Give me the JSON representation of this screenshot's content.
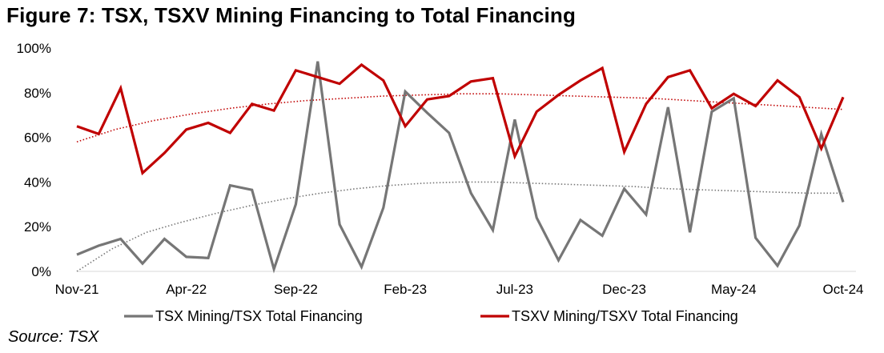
{
  "title": "Figure 7: TSX, TSXV Mining Financing to Total Financing",
  "source": "Source: TSX",
  "chart_data": {
    "type": "line",
    "title": "Figure 7: TSX, TSXV Mining Financing to Total Financing",
    "xlabel": "",
    "ylabel": "",
    "ylim": [
      0,
      100
    ],
    "y_ticks": [
      "0%",
      "20%",
      "40%",
      "60%",
      "80%",
      "100%"
    ],
    "x_tick_labels": [
      {
        "index": 0,
        "label": "Nov-21"
      },
      {
        "index": 5,
        "label": "Apr-22"
      },
      {
        "index": 10,
        "label": "Sep-22"
      },
      {
        "index": 15,
        "label": "Feb-23"
      },
      {
        "index": 20,
        "label": "Jul-23"
      },
      {
        "index": 25,
        "label": "Dec-23"
      },
      {
        "index": 30,
        "label": "May-24"
      },
      {
        "index": 35,
        "label": "Oct-24"
      }
    ],
    "categories": [
      "Nov-21",
      "Dec-21",
      "Jan-22",
      "Feb-22",
      "Mar-22",
      "Apr-22",
      "May-22",
      "Jun-22",
      "Jul-22",
      "Aug-22",
      "Sep-22",
      "Oct-22",
      "Nov-22",
      "Dec-22",
      "Jan-23",
      "Feb-23",
      "Mar-23",
      "Apr-23",
      "May-23",
      "Jun-23",
      "Jul-23",
      "Aug-23",
      "Sep-23",
      "Oct-23",
      "Nov-23",
      "Dec-23",
      "Jan-24",
      "Feb-24",
      "Mar-24",
      "Apr-24",
      "May-24",
      "Jun-24",
      "Jul-24",
      "Aug-24",
      "Sep-24",
      "Oct-24"
    ],
    "series": [
      {
        "name": "TSX Mining/TSX Total Financing",
        "color": "#767676",
        "values": [
          7.5,
          11.5,
          14.5,
          3.5,
          14.5,
          6.5,
          6,
          38.5,
          36.5,
          1,
          30,
          94,
          21,
          2,
          28.5,
          80.5,
          71,
          62,
          35,
          18.5,
          68,
          24,
          5,
          23,
          16,
          37,
          25.5,
          73.5,
          17.5,
          71.5,
          77.5,
          15,
          2.5,
          20.5,
          61.5,
          31
        ],
        "trend_color": "#767676",
        "trend": [
          0,
          10,
          17.5,
          22,
          26,
          29.5,
          32.5,
          35,
          37,
          38.5,
          39.5,
          40,
          40,
          39.5,
          39,
          38.5,
          38,
          37,
          36.5,
          36,
          35.5,
          35,
          35
        ]
      },
      {
        "name": "TSXV Mining/TSXV Total Financing",
        "color": "#c00000",
        "values": [
          65,
          61.5,
          82,
          44,
          53,
          63.5,
          66.5,
          62,
          75,
          72,
          90,
          87,
          84,
          92.5,
          85.5,
          65,
          77,
          78.5,
          85,
          86.5,
          51.5,
          71.5,
          79,
          85.5,
          91,
          53.5,
          75,
          87,
          90,
          73,
          79.5,
          74,
          85.5,
          78,
          55,
          78
        ],
        "trend_color": "#c00000",
        "trend": [
          58,
          63.5,
          67.5,
          70.5,
          73,
          75,
          76.5,
          77.5,
          78.5,
          79,
          79.5,
          79.5,
          79,
          78.5,
          78,
          77.5,
          76.5,
          75.5,
          74.5,
          73.5,
          72.5
        ]
      }
    ],
    "legend_position": "bottom"
  }
}
